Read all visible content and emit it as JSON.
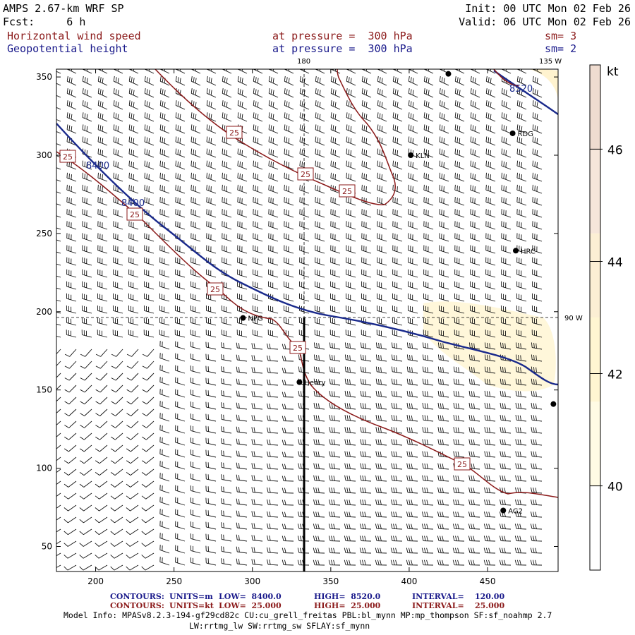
{
  "header": {
    "model_line": "AMPS 2.67-km WRF SP",
    "fcst_line": "Fcst:     6 h",
    "init_line": "Init: 00 UTC Mon 02 Feb 26",
    "valid_line": "Valid: 06 UTC Mon 02 Feb 26"
  },
  "fields": [
    {
      "name": "Horizontal wind speed",
      "pressure": "at pressure =  300 hPa",
      "sm": "sm= 3",
      "color": "#8b1a1a"
    },
    {
      "name": "Geopotential height",
      "pressure": "at pressure =  300 hPa",
      "sm": "sm= 2",
      "color": "#1a1a8b"
    }
  ],
  "map": {
    "x_ticks": [
      "200",
      "250",
      "300",
      "350",
      "400",
      "450"
    ],
    "y_ticks": [
      "350",
      "300",
      "250",
      "200",
      "150",
      "100",
      "50"
    ],
    "x_tick_values": [
      200,
      250,
      300,
      350,
      400,
      450
    ],
    "y_tick_values": [
      350,
      300,
      250,
      200,
      150,
      100,
      50
    ],
    "x_range": [
      175,
      495
    ],
    "y_range": [
      34,
      355
    ],
    "meridian_labels": {
      "top_180": "180",
      "top_135w": "135 W",
      "right_90w": "90 W"
    },
    "stations": [
      {
        "name": "",
        "x": 425,
        "y": 352
      },
      {
        "name": "RDG",
        "x": 466,
        "y": 314
      },
      {
        "name": "KLN",
        "x": 401,
        "y": 300
      },
      {
        "name": "HRC",
        "x": 468,
        "y": 239
      },
      {
        "name": "NPG",
        "x": 294,
        "y": 196
      },
      {
        "name": "Henry",
        "x": 330,
        "y": 155
      },
      {
        "name": "AG2",
        "x": 460,
        "y": 73
      },
      {
        "name": "",
        "x": 492,
        "y": 141
      }
    ],
    "height_labels": [
      "8400",
      "8400",
      "8520"
    ],
    "speed_labels": [
      "25",
      "25",
      "25",
      "25",
      "25",
      "25",
      "25",
      "25"
    ]
  },
  "colorbar": {
    "unit": "kt",
    "labels": [
      "46",
      "44",
      "42",
      "40"
    ],
    "label_values": [
      46,
      44,
      42,
      40
    ],
    "range": [
      38.5,
      47.5
    ],
    "colors": [
      "#ffffff",
      "#fffbe4",
      "#fff6d2",
      "#fcefd4",
      "#f6e6da",
      "#efdcd0"
    ]
  },
  "footer": {
    "row1": {
      "label": "CONTOURS:",
      "units": "UNITS=m",
      "low": "LOW=  8400.0",
      "high": "HIGH=  8520.0",
      "interval": "INTERVAL=    120.00"
    },
    "row2": {
      "label": "CONTOURS:",
      "units": "UNITS=kt",
      "low": "LOW=  25.000",
      "high": "HIGH=  25.000",
      "interval": "INTERVAL=    25.000"
    },
    "model_info": "Model Info: MPASv8.2.3-194-gf29cd82c CU:cu_grell_freitas PBL:bl_mynn MP:mp_thompson SF:sf_noahmp 2.7",
    "model_info2": "LW:rrtmg_lw SW:rrtmg_sw SFLAY:sf_mynn"
  }
}
